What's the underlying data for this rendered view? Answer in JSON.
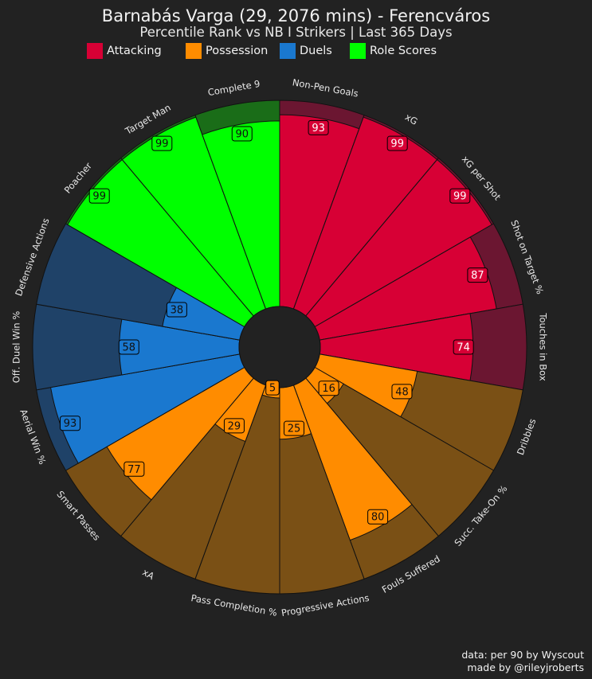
{
  "header": {
    "title": "Barnabás Varga (29, 2076 mins) - Ferencváros",
    "subtitle": "Percentile Rank vs NB I Strikers | Last 365 Days"
  },
  "legend": [
    {
      "label": "Attacking",
      "color": "#d70035"
    },
    {
      "label": "Possession",
      "color": "#ff8c00"
    },
    {
      "label": "Duels",
      "color": "#1a78cf"
    },
    {
      "label": "Role Scores",
      "color": "#00ff00"
    }
  ],
  "credits": {
    "line1": "data: per 90 by Wyscout",
    "line2": "made by @rileyjroberts"
  },
  "colors": {
    "background": "#222222",
    "Attacking_bg": "#6b1631",
    "Possession_bg": "#7a5015",
    "Duels_bg": "#1f4268",
    "Role Scores_bg": "#1a6d18"
  },
  "chart_data": {
    "type": "radial-bar",
    "metrics": [
      {
        "label": "Non-Pen Goals",
        "value": 93,
        "group": "Attacking"
      },
      {
        "label": "xG",
        "value": 99,
        "group": "Attacking"
      },
      {
        "label": "xG per Shot",
        "value": 99,
        "group": "Attacking"
      },
      {
        "label": "Shot on Target %",
        "value": 87,
        "group": "Attacking"
      },
      {
        "label": "Touches in Box",
        "value": 74,
        "group": "Attacking"
      },
      {
        "label": "Dribbles",
        "value": 48,
        "group": "Possession"
      },
      {
        "label": "Succ. Take-On %",
        "value": 16,
        "group": "Possession"
      },
      {
        "label": "Fouls Suffered",
        "value": 80,
        "group": "Possession"
      },
      {
        "label": "Progressive Actions",
        "value": 25,
        "group": "Possession"
      },
      {
        "label": "Pass Completion %",
        "value": 5,
        "group": "Possession"
      },
      {
        "label": "xA",
        "value": 29,
        "group": "Possession"
      },
      {
        "label": "Smart Passes",
        "value": 77,
        "group": "Possession"
      },
      {
        "label": "Aerial Win %",
        "value": 93,
        "group": "Duels"
      },
      {
        "label": "Off. Duel Win %",
        "value": 58,
        "group": "Duels"
      },
      {
        "label": "Defensive Actions",
        "value": 38,
        "group": "Duels"
      },
      {
        "label": "Poacher",
        "value": 99,
        "group": "Role Scores"
      },
      {
        "label": "Target Man",
        "value": 99,
        "group": "Role Scores"
      },
      {
        "label": "Complete 9",
        "value": 90,
        "group": "Role Scores"
      }
    ],
    "range": [
      0,
      100
    ],
    "start": "top, clockwise"
  }
}
